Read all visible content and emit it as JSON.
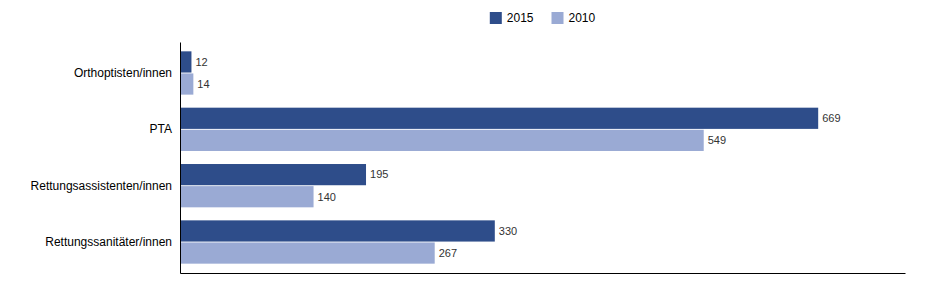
{
  "chart_data": {
    "type": "bar",
    "orientation": "horizontal",
    "categories": [
      "Rettungssanitäter/innen",
      "Rettungsassistenten/innen",
      "PTA",
      "Orthoptisten/innen"
    ],
    "series": [
      {
        "name": "2015",
        "color": "#2E4D8A",
        "values": [
          330,
          195,
          669,
          12
        ]
      },
      {
        "name": "2010",
        "color": "#9aaad4",
        "values": [
          267,
          140,
          549,
          14
        ]
      }
    ],
    "xlim": [
      0,
      760
    ],
    "tick_labels": "y",
    "data_labels": true,
    "legend": "top"
  }
}
